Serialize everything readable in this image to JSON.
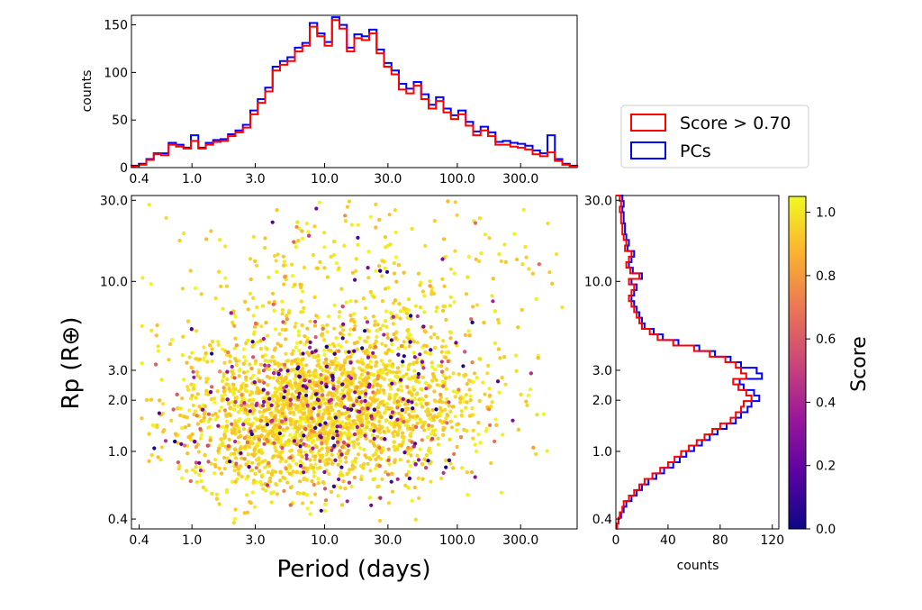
{
  "colors": {
    "score_hist": "#ff0000",
    "pc_hist": "#0000ff",
    "colormap": "plasma",
    "colormap_stops": [
      "#0d0887",
      "#5b02a3",
      "#9a179b",
      "#cb4679",
      "#eb7852",
      "#fbb32f",
      "#f0f921"
    ]
  },
  "chart_data": [
    {
      "id": "period-histogram",
      "type": "histogram",
      "xscale": "log",
      "xlim": [
        0.35,
        800
      ],
      "ylim": [
        0,
        160
      ],
      "ylabel": "counts",
      "xticks": [
        0.4,
        1.0,
        3.0,
        10.0,
        30.0,
        100.0,
        300.0
      ],
      "xtick_labels": [
        "0.4",
        "1.0",
        "3.0",
        "10.0",
        "30.0",
        "100.0",
        "300.0"
      ],
      "yticks": [
        0,
        50,
        100,
        150
      ],
      "bin_edges_range": [
        0.35,
        800
      ],
      "n_bins": 60,
      "series": [
        {
          "name": "Score > 0.70",
          "color": "#ff0000",
          "values": [
            1,
            3,
            8,
            14,
            13,
            24,
            22,
            20,
            28,
            20,
            24,
            27,
            28,
            33,
            37,
            42,
            56,
            68,
            80,
            102,
            108,
            112,
            122,
            128,
            148,
            138,
            128,
            155,
            146,
            122,
            136,
            134,
            141,
            120,
            106,
            98,
            82,
            78,
            86,
            72,
            62,
            70,
            58,
            51,
            56,
            44,
            34,
            39,
            33,
            24,
            24,
            22,
            21,
            19,
            14,
            12,
            16,
            7,
            3,
            1
          ]
        },
        {
          "name": "PCs",
          "color": "#0000ff",
          "values": [
            2,
            4,
            9,
            15,
            15,
            26,
            24,
            21,
            34,
            21,
            26,
            29,
            30,
            35,
            39,
            45,
            60,
            72,
            84,
            106,
            112,
            116,
            126,
            131,
            152,
            141,
            132,
            158,
            150,
            126,
            140,
            138,
            145,
            124,
            110,
            102,
            88,
            83,
            90,
            77,
            66,
            74,
            62,
            55,
            60,
            48,
            38,
            43,
            37,
            27,
            28,
            26,
            25,
            23,
            18,
            15,
            34,
            9,
            4,
            2
          ]
        }
      ]
    },
    {
      "id": "scatter",
      "type": "scatter",
      "xscale": "log",
      "yscale": "log",
      "xlabel": "Period (days)",
      "ylabel": "Rp (R⊕)",
      "xlim": [
        0.35,
        800
      ],
      "ylim": [
        0.35,
        32
      ],
      "xticks": [
        0.4,
        1.0,
        3.0,
        10.0,
        30.0,
        100.0,
        300.0
      ],
      "xtick_labels": [
        "0.4",
        "1.0",
        "3.0",
        "10.0",
        "30.0",
        "100.0",
        "300.0"
      ],
      "yticks": [
        0.4,
        1.0,
        2.0,
        3.0,
        10.0,
        30.0
      ],
      "ytick_labels": [
        "0.4",
        "1.0",
        "2.0",
        "3.0",
        "10.0",
        "30.0"
      ],
      "color_by": "Score",
      "n_points_approx": 4000,
      "clusters": [
        {
          "period_median": 12,
          "rp_median": 1.9,
          "period_spread_dex": 0.55,
          "rp_spread_dex": 0.22,
          "weight": 0.72
        },
        {
          "period_median": 20,
          "rp_median": 9,
          "period_spread_dex": 0.75,
          "rp_spread_dex": 0.3,
          "weight": 0.13
        },
        {
          "period_median": 4,
          "rp_median": 1.1,
          "period_spread_dex": 0.4,
          "rp_spread_dex": 0.18,
          "weight": 0.15
        }
      ]
    },
    {
      "id": "radius-histogram",
      "type": "histogram",
      "orientation": "horizontal",
      "yscale": "log",
      "ylim": [
        0.35,
        32
      ],
      "xlim": [
        0,
        125
      ],
      "xlabel": "counts",
      "xticks": [
        0,
        40,
        80,
        120
      ],
      "yticks": [
        0.4,
        1.0,
        2.0,
        3.0,
        10.0,
        30.0
      ],
      "ytick_labels": [
        "0.4",
        "1.0",
        "2.0",
        "3.0",
        "10.0",
        "30.0"
      ],
      "n_bins": 60,
      "series": [
        {
          "name": "Score > 0.70",
          "color": "#ff0000",
          "values": [
            1,
            2,
            3,
            5,
            6,
            10,
            14,
            18,
            22,
            28,
            34,
            40,
            45,
            50,
            56,
            62,
            68,
            74,
            80,
            88,
            92,
            96,
            98,
            104,
            100,
            94,
            90,
            100,
            96,
            92,
            84,
            72,
            60,
            44,
            32,
            26,
            20,
            18,
            16,
            14,
            12,
            10,
            12,
            14,
            10,
            18,
            11,
            8,
            10,
            12,
            7,
            8,
            6,
            5,
            5,
            4,
            4,
            3,
            4,
            3
          ]
        },
        {
          "name": "PCs",
          "color": "#0000ff",
          "values": [
            1,
            2,
            4,
            6,
            8,
            12,
            16,
            20,
            25,
            31,
            37,
            44,
            49,
            54,
            60,
            66,
            72,
            78,
            85,
            92,
            96,
            101,
            104,
            110,
            106,
            98,
            95,
            112,
            108,
            96,
            88,
            76,
            64,
            48,
            36,
            29,
            22,
            20,
            18,
            16,
            14,
            12,
            14,
            16,
            12,
            20,
            13,
            10,
            12,
            14,
            9,
            10,
            8,
            7,
            7,
            6,
            6,
            5,
            6,
            5
          ]
        }
      ]
    },
    {
      "id": "colorbar",
      "type": "colorbar",
      "label": "Score",
      "ticks": [
        0.0,
        0.2,
        0.4,
        0.6,
        0.8,
        1.0
      ],
      "tick_labels": [
        "0.0",
        "0.2",
        "0.4",
        "0.6",
        "0.8",
        "1.0"
      ],
      "range": [
        0.0,
        1.05
      ]
    }
  ],
  "legend": {
    "items": [
      {
        "label": "Score > 0.70",
        "color": "#ff0000"
      },
      {
        "label": "PCs",
        "color": "#0000ff"
      }
    ]
  }
}
